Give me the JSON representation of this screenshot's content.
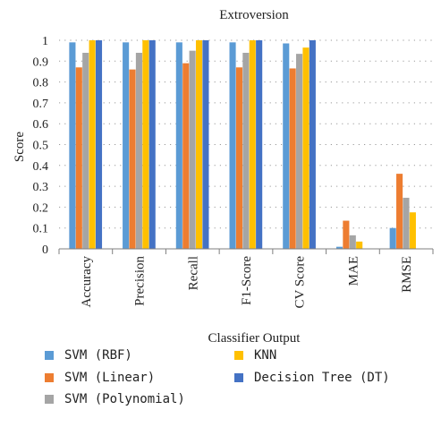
{
  "chart_data": {
    "type": "bar",
    "title": "Extroversion",
    "xlabel": "Classifier Output",
    "ylabel": "Score",
    "ylim": [
      0,
      1
    ],
    "yticks": [
      "0",
      "0.1",
      "0.2",
      "0.3",
      "0.4",
      "0.5",
      "0.6",
      "0.7",
      "0.8",
      "0.9",
      "1"
    ],
    "grid": "dotted horizontal",
    "legend_position": "bottom",
    "categories": [
      "Accuracy",
      "Precision",
      "Recall",
      "F1-Score",
      "CV Score",
      "MAE",
      "RMSE"
    ],
    "series": [
      {
        "name": "SVM (RBF)",
        "color": "#5b9bd5",
        "values": [
          0.99,
          0.99,
          0.99,
          0.99,
          0.985,
          0.01,
          0.1
        ]
      },
      {
        "name": "SVM (Linear)",
        "color": "#ed7d31",
        "values": [
          0.87,
          0.86,
          0.89,
          0.87,
          0.865,
          0.135,
          0.36
        ]
      },
      {
        "name": "SVM (Polynomial)",
        "color": "#a5a5a5",
        "values": [
          0.94,
          0.94,
          0.95,
          0.94,
          0.935,
          0.065,
          0.245
        ]
      },
      {
        "name": "KNN",
        "color": "#ffc000",
        "values": [
          1.0,
          1.0,
          1.0,
          1.0,
          0.965,
          0.035,
          0.175
        ]
      },
      {
        "name": "Decision Tree (DT)",
        "color": "#4472c4",
        "values": [
          1.0,
          1.0,
          1.0,
          1.0,
          1.0,
          0.0,
          0.0
        ]
      }
    ]
  }
}
